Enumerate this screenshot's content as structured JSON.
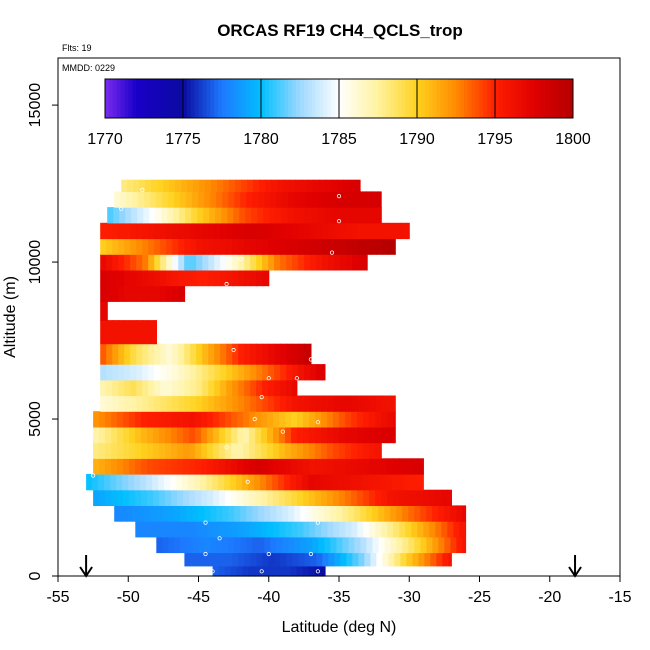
{
  "chart_data": {
    "type": "heatmap",
    "title": "ORCAS RF19 CH4_QCLS_trop",
    "info_lines": [
      "Flts: 19",
      "MMDD: 0229"
    ],
    "xlabel": "Latitude (deg N)",
    "ylabel": "Altitude (m)",
    "xlim": [
      -55,
      -15
    ],
    "ylim": [
      0,
      16500
    ],
    "x_ticks": [
      -55,
      -50,
      -45,
      -40,
      -35,
      -30,
      -25,
      -20,
      -15
    ],
    "y_ticks": [
      0,
      5000,
      10000,
      15000
    ],
    "colorbar": {
      "min": 1770,
      "max": 1800,
      "ticks": [
        1770,
        1775,
        1780,
        1785,
        1790,
        1795,
        1800
      ],
      "stops": [
        {
          "v": 1770,
          "c": "#7b2cf0"
        },
        {
          "v": 1772,
          "c": "#1a00c8"
        },
        {
          "v": 1775,
          "c": "#0a0aa0"
        },
        {
          "v": 1777.5,
          "c": "#1e78ff"
        },
        {
          "v": 1780,
          "c": "#00bfff"
        },
        {
          "v": 1782.5,
          "c": "#9ed8ff"
        },
        {
          "v": 1785,
          "c": "#ffffff"
        },
        {
          "v": 1787.5,
          "c": "#fff2a0"
        },
        {
          "v": 1790,
          "c": "#ffd21e"
        },
        {
          "v": 1792.5,
          "c": "#ff8a00"
        },
        {
          "v": 1795,
          "c": "#ff1e00"
        },
        {
          "v": 1797.5,
          "c": "#e00000"
        },
        {
          "v": 1800,
          "c": "#b40000"
        }
      ]
    },
    "flight_endpoints_lat": [
      -53,
      -18.2
    ],
    "curtain": [
      {
        "alt": 12500,
        "lat_min": -50.5,
        "lat_max": -33.5,
        "profile": [
          1788,
          1790,
          1792,
          1794,
          1796,
          1797,
          1798
        ]
      },
      {
        "alt": 12000,
        "lat_min": -51,
        "lat_max": -32,
        "profile": [
          1786,
          1789,
          1792,
          1795,
          1797,
          1798,
          1798
        ]
      },
      {
        "alt": 11500,
        "lat_min": -51.5,
        "lat_max": -32,
        "profile": [
          1781,
          1785,
          1790,
          1794,
          1796,
          1797,
          1797
        ]
      },
      {
        "alt": 11000,
        "lat_min": -52,
        "lat_max": -30,
        "profile": [
          1795,
          1796,
          1797,
          1798,
          1797,
          1796,
          1796
        ]
      },
      {
        "alt": 10500,
        "lat_min": -52,
        "lat_max": -31,
        "profile": [
          1790,
          1793,
          1796,
          1797,
          1798,
          1799,
          1800
        ]
      },
      {
        "alt": 10000,
        "lat_min": -52,
        "lat_max": -33,
        "profile": [
          1797,
          1793,
          1781,
          1786,
          1793,
          1796,
          1798
        ]
      },
      {
        "alt": 9500,
        "lat_min": -52,
        "lat_max": -40,
        "profile": [
          1798,
          1797,
          1796,
          1795,
          1796,
          1797
        ]
      },
      {
        "alt": 9000,
        "lat_min": -52,
        "lat_max": -46,
        "profile": [
          1798,
          1797,
          1797,
          1798
        ]
      },
      {
        "alt": 8500,
        "lat_min": -52,
        "lat_max": -51.5,
        "profile": [
          1797,
          1797
        ]
      },
      {
        "alt": 7800,
        "lat_min": -52,
        "lat_max": -48,
        "profile": [
          1796,
          1796,
          1796
        ]
      },
      {
        "alt": 7000,
        "lat_min": -52,
        "lat_max": -37,
        "profile": [
          1794,
          1789,
          1786,
          1791,
          1795,
          1797,
          1799
        ]
      },
      {
        "alt": 6500,
        "lat_min": -52,
        "lat_max": -36,
        "profile": [
          1783,
          1784,
          1786,
          1789,
          1792,
          1795,
          1798
        ]
      },
      {
        "alt": 6000,
        "lat_min": -52,
        "lat_max": -38,
        "profile": [
          1787,
          1789,
          1786,
          1788,
          1792,
          1795,
          1797
        ]
      },
      {
        "alt": 5500,
        "lat_min": -52,
        "lat_max": -31,
        "profile": [
          1786,
          1788,
          1790,
          1793,
          1796,
          1797,
          1796
        ]
      },
      {
        "alt": 5000,
        "lat_min": -52.5,
        "lat_max": -31,
        "profile": [
          1792,
          1795,
          1796,
          1793,
          1790,
          1794,
          1797
        ]
      },
      {
        "alt": 4500,
        "lat_min": -52.5,
        "lat_max": -31,
        "profile": [
          1787,
          1791,
          1794,
          1787,
          1795,
          1797,
          1798
        ]
      },
      {
        "alt": 4000,
        "lat_min": -52.5,
        "lat_max": -32,
        "profile": [
          1788,
          1790,
          1792,
          1787,
          1791,
          1794,
          1796
        ]
      },
      {
        "alt": 3500,
        "lat_min": -52.5,
        "lat_max": -29,
        "profile": [
          1791,
          1794,
          1795,
          1798,
          1796,
          1797,
          1798
        ]
      },
      {
        "alt": 3000,
        "lat_min": -53,
        "lat_max": -29,
        "profile": [
          1780,
          1783,
          1787,
          1792,
          1797,
          1796,
          1795
        ]
      },
      {
        "alt": 2500,
        "lat_min": -52.5,
        "lat_max": -27,
        "profile": [
          1779,
          1781,
          1784,
          1788,
          1792,
          1796,
          1797
        ]
      },
      {
        "alt": 2000,
        "lat_min": -51,
        "lat_max": -26,
        "profile": [
          1778,
          1779,
          1781,
          1784,
          1788,
          1793,
          1797
        ]
      },
      {
        "alt": 1500,
        "lat_min": -49.5,
        "lat_max": -26,
        "profile": [
          1778,
          1778,
          1779,
          1781,
          1784,
          1790,
          1796
        ]
      },
      {
        "alt": 1000,
        "lat_min": -48,
        "lat_max": -26,
        "profile": [
          1777,
          1778,
          1777,
          1779,
          1783,
          1789,
          1796
        ]
      },
      {
        "alt": 500,
        "lat_min": -46,
        "lat_max": -27,
        "profile": [
          1777,
          1777,
          1776,
          1777,
          1782,
          1790,
          1796
        ]
      },
      {
        "alt": 150,
        "lat_min": -44,
        "lat_max": -36,
        "profile": [
          1777,
          1776,
          1776,
          1775
        ]
      }
    ],
    "sample_points": [
      {
        "lat": -51,
        "alt": 12400
      },
      {
        "lat": -49,
        "alt": 12300
      },
      {
        "lat": -35,
        "alt": 12100
      },
      {
        "lat": -50.5,
        "alt": 11700
      },
      {
        "lat": -35,
        "alt": 11300
      },
      {
        "lat": -42,
        "alt": 10100
      },
      {
        "lat": -35.5,
        "alt": 10300
      },
      {
        "lat": -43,
        "alt": 9300
      },
      {
        "lat": -37.5,
        "alt": 8300
      },
      {
        "lat": -42.5,
        "alt": 7200
      },
      {
        "lat": -37,
        "alt": 6900
      },
      {
        "lat": -40,
        "alt": 6300
      },
      {
        "lat": -38,
        "alt": 6300
      },
      {
        "lat": -34,
        "alt": 6200
      },
      {
        "lat": -40.5,
        "alt": 5700
      },
      {
        "lat": -41,
        "alt": 5000
      },
      {
        "lat": -36.5,
        "alt": 4900
      },
      {
        "lat": -39,
        "alt": 4600
      },
      {
        "lat": -43,
        "alt": 4100
      },
      {
        "lat": -41.5,
        "alt": 3000
      },
      {
        "lat": -44.5,
        "alt": 1700
      },
      {
        "lat": -43.5,
        "alt": 1200
      },
      {
        "lat": -36.5,
        "alt": 1700
      },
      {
        "lat": -44.5,
        "alt": 700
      },
      {
        "lat": -40,
        "alt": 700
      },
      {
        "lat": -37,
        "alt": 700
      },
      {
        "lat": -44,
        "alt": 150
      },
      {
        "lat": -40.5,
        "alt": 150
      },
      {
        "lat": -36.5,
        "alt": 150
      },
      {
        "lat": -52.5,
        "alt": 3200
      }
    ]
  }
}
